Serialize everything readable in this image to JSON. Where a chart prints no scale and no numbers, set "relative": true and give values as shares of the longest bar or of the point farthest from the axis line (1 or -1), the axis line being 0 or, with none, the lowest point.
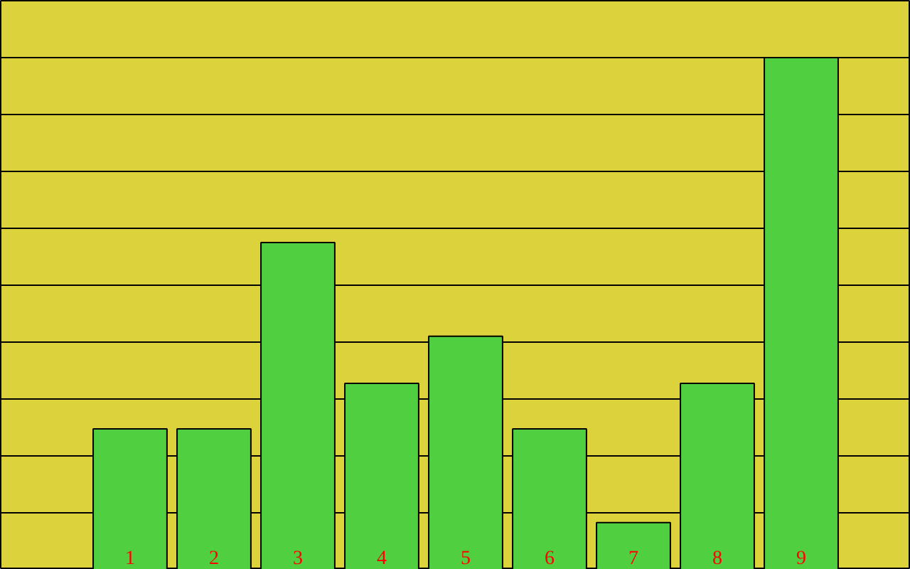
{
  "chart_data": {
    "type": "bar",
    "relative": true,
    "categories": [
      "1",
      "2",
      "3",
      "4",
      "5",
      "6",
      "7",
      "8",
      "9"
    ],
    "values": [
      0.275,
      0.275,
      0.639,
      0.364,
      0.456,
      0.275,
      0.092,
      0.364,
      1
    ],
    "color": "#50d040",
    "grid": "y"
  }
}
